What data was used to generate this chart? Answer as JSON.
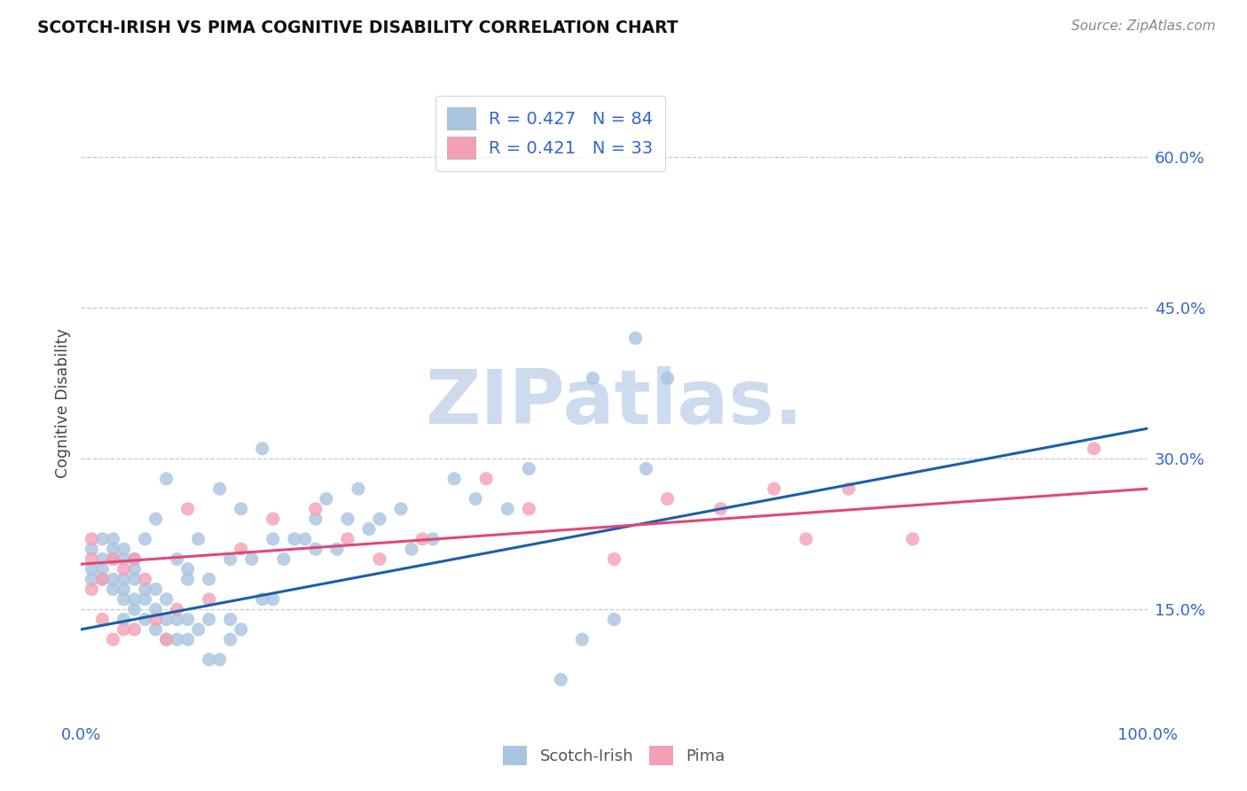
{
  "title": "SCOTCH-IRISH VS PIMA COGNITIVE DISABILITY CORRELATION CHART",
  "source": "Source: ZipAtlas.com",
  "ylabel": "Cognitive Disability",
  "yticks": [
    0.15,
    0.3,
    0.45,
    0.6
  ],
  "ytick_labels": [
    "15.0%",
    "30.0%",
    "45.0%",
    "60.0%"
  ],
  "xlim": [
    0.0,
    1.0
  ],
  "ylim": [
    0.04,
    0.67
  ],
  "blue_R": "0.427",
  "blue_N": "84",
  "pink_R": "0.421",
  "pink_N": "33",
  "blue_color": "#a8c4e0",
  "blue_line_color": "#1a5fa8",
  "pink_color": "#f4a0b4",
  "pink_line_color": "#e04878",
  "watermark_color": "#ccdcee",
  "grid_color": "#c8c8c8",
  "tick_label_color": "#3366cc",
  "title_color": "#111111",
  "background_color": "#ffffff",
  "blue_scatter_x": [
    0.01,
    0.01,
    0.01,
    0.02,
    0.02,
    0.02,
    0.02,
    0.03,
    0.03,
    0.03,
    0.03,
    0.03,
    0.04,
    0.04,
    0.04,
    0.04,
    0.04,
    0.04,
    0.05,
    0.05,
    0.05,
    0.05,
    0.05,
    0.06,
    0.06,
    0.06,
    0.06,
    0.07,
    0.07,
    0.07,
    0.07,
    0.08,
    0.08,
    0.08,
    0.08,
    0.09,
    0.09,
    0.09,
    0.1,
    0.1,
    0.1,
    0.1,
    0.11,
    0.11,
    0.12,
    0.12,
    0.12,
    0.13,
    0.13,
    0.14,
    0.14,
    0.14,
    0.15,
    0.15,
    0.16,
    0.17,
    0.17,
    0.18,
    0.18,
    0.19,
    0.2,
    0.21,
    0.22,
    0.22,
    0.23,
    0.24,
    0.25,
    0.26,
    0.27,
    0.28,
    0.3,
    0.31,
    0.33,
    0.35,
    0.37,
    0.4,
    0.42,
    0.45,
    0.47,
    0.48,
    0.5,
    0.52,
    0.53,
    0.55
  ],
  "blue_scatter_y": [
    0.18,
    0.19,
    0.21,
    0.18,
    0.19,
    0.2,
    0.22,
    0.17,
    0.18,
    0.2,
    0.21,
    0.22,
    0.14,
    0.16,
    0.17,
    0.18,
    0.2,
    0.21,
    0.15,
    0.16,
    0.18,
    0.19,
    0.2,
    0.14,
    0.16,
    0.17,
    0.22,
    0.13,
    0.15,
    0.17,
    0.24,
    0.12,
    0.14,
    0.16,
    0.28,
    0.12,
    0.14,
    0.2,
    0.12,
    0.14,
    0.18,
    0.19,
    0.13,
    0.22,
    0.1,
    0.14,
    0.18,
    0.1,
    0.27,
    0.12,
    0.14,
    0.2,
    0.13,
    0.25,
    0.2,
    0.16,
    0.31,
    0.16,
    0.22,
    0.2,
    0.22,
    0.22,
    0.21,
    0.24,
    0.26,
    0.21,
    0.24,
    0.27,
    0.23,
    0.24,
    0.25,
    0.21,
    0.22,
    0.28,
    0.26,
    0.25,
    0.29,
    0.08,
    0.12,
    0.38,
    0.14,
    0.42,
    0.29,
    0.38
  ],
  "pink_scatter_x": [
    0.01,
    0.01,
    0.01,
    0.02,
    0.02,
    0.03,
    0.03,
    0.04,
    0.04,
    0.05,
    0.05,
    0.06,
    0.07,
    0.08,
    0.09,
    0.1,
    0.12,
    0.15,
    0.18,
    0.22,
    0.25,
    0.28,
    0.32,
    0.38,
    0.42,
    0.5,
    0.55,
    0.6,
    0.65,
    0.68,
    0.72,
    0.78,
    0.95
  ],
  "pink_scatter_y": [
    0.17,
    0.2,
    0.22,
    0.14,
    0.18,
    0.12,
    0.2,
    0.13,
    0.19,
    0.13,
    0.2,
    0.18,
    0.14,
    0.12,
    0.15,
    0.25,
    0.16,
    0.21,
    0.24,
    0.25,
    0.22,
    0.2,
    0.22,
    0.28,
    0.25,
    0.2,
    0.26,
    0.25,
    0.27,
    0.22,
    0.27,
    0.22,
    0.31
  ],
  "blue_trend_x": [
    0.0,
    1.0
  ],
  "blue_trend_y": [
    0.13,
    0.33
  ],
  "pink_trend_x": [
    0.0,
    1.0
  ],
  "pink_trend_y": [
    0.195,
    0.27
  ]
}
